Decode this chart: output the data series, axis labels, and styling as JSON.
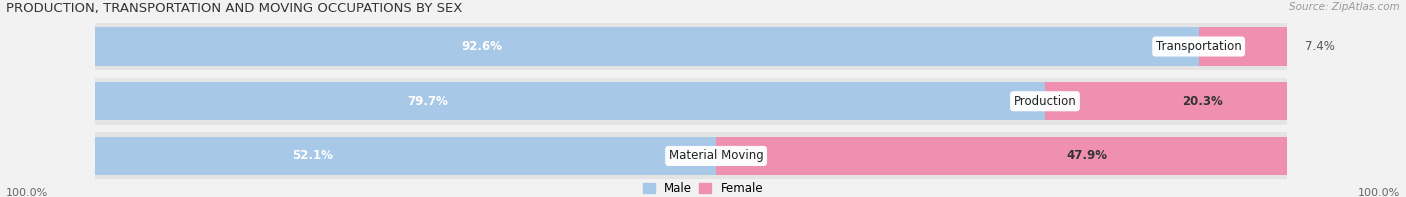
{
  "title": "PRODUCTION, TRANSPORTATION AND MOVING OCCUPATIONS BY SEX",
  "source_text": "Source: ZipAtlas.com",
  "categories": [
    "Transportation",
    "Production",
    "Material Moving"
  ],
  "male_values": [
    92.6,
    79.7,
    52.1
  ],
  "female_values": [
    7.4,
    20.3,
    47.9
  ],
  "male_color": "#a8c8e8",
  "female_color": "#f090b0",
  "male_legend_color": "#a8c8e8",
  "female_legend_color": "#f090b0",
  "background_color": "#f2f2f2",
  "row_bg_color": "#e4e4e4",
  "title_fontsize": 9.5,
  "source_fontsize": 7.5,
  "label_fontsize": 8.5,
  "legend_fontsize": 8.5,
  "axis_label_fontsize": 8,
  "bar_height": 0.7,
  "figsize": [
    14.06,
    1.97
  ],
  "dpi": 100,
  "x_left_label": "100.0%",
  "x_right_label": "100.0%"
}
